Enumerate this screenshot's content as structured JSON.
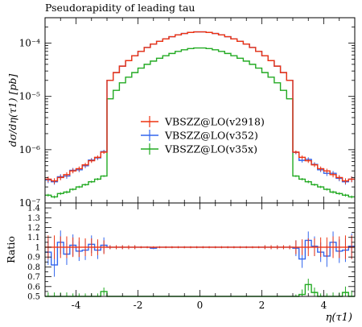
{
  "chart_data": {
    "type": "line",
    "title": "Pseudorapidity of leading tau",
    "ylabel": "dσ/dη(τ1) [pb]",
    "ratio_ylabel": "Ratio",
    "xlabel": "η(τ1)",
    "xlim": [
      -5,
      5
    ],
    "ylim_log": [
      1e-07,
      0.0003
    ],
    "ratio_ylim": [
      0.5,
      1.45
    ],
    "x_ticks": [
      -4,
      -2,
      0,
      2,
      4
    ],
    "x_tick_labels": [
      "-4",
      "-2",
      "0",
      "2",
      "4"
    ],
    "y_ticks": [
      1e-07,
      1e-06,
      1e-05,
      0.0001
    ],
    "y_tick_labels": [
      "10⁻⁷",
      "10⁻⁶",
      "10⁻⁵",
      "10⁻⁴"
    ],
    "ratio_ticks": [
      0.5,
      0.6,
      0.7,
      0.8,
      0.9,
      1.0,
      1.1,
      1.2,
      1.3,
      1.4
    ],
    "ratio_tick_labels": [
      "0.5",
      "0.6",
      "0.7",
      "0.8",
      "0.9",
      "1",
      "1.1",
      "1.2",
      "1.3",
      "1.4"
    ],
    "legend_position": "center",
    "bin_edges": [
      -5.0,
      -4.8,
      -4.6,
      -4.4,
      -4.2,
      -4.0,
      -3.8,
      -3.6,
      -3.4,
      -3.2,
      -3.0,
      -2.8,
      -2.6,
      -2.4,
      -2.2,
      -2.0,
      -1.8,
      -1.6,
      -1.4,
      -1.2,
      -1.0,
      -0.8,
      -0.6,
      -0.4,
      -0.2,
      0.0,
      0.2,
      0.4,
      0.6,
      0.8,
      1.0,
      1.2,
      1.4,
      1.6,
      1.8,
      2.0,
      2.2,
      2.4,
      2.6,
      2.8,
      3.0,
      3.2,
      3.4,
      3.6,
      3.8,
      4.0,
      4.2,
      4.4,
      4.6,
      4.8,
      5.0
    ],
    "series": [
      {
        "name": "VBSZZ@LO(v2918)",
        "color": "#ee3311",
        "values": [
          2.8e-07,
          2.6e-07,
          3e-07,
          3.4e-07,
          4e-07,
          4.4e-07,
          5.2e-07,
          6.2e-07,
          7.2e-07,
          9e-07,
          2e-05,
          2.8e-05,
          3.7e-05,
          4.7e-05,
          5.8e-05,
          7e-05,
          8.3e-05,
          9.6e-05,
          0.000108,
          0.00012,
          0.000132,
          0.000143,
          0.000152,
          0.000159,
          0.000163,
          0.000163,
          0.000159,
          0.000152,
          0.000143,
          0.000132,
          0.00012,
          0.000108,
          9.6e-05,
          8.3e-05,
          7e-05,
          5.8e-05,
          4.7e-05,
          3.7e-05,
          2.8e-05,
          2e-05,
          9e-07,
          7.2e-07,
          6.2e-07,
          5.2e-07,
          4.4e-07,
          4e-07,
          3.4e-07,
          3e-07,
          2.6e-07,
          2.8e-07
        ],
        "ratio": [
          1.0,
          1.0,
          1.0,
          1.0,
          1.0,
          1.0,
          1.0,
          1.0,
          1.0,
          1.0,
          1.0,
          1.0,
          1.0,
          1.0,
          1.0,
          1.0,
          1.0,
          1.0,
          1.0,
          1.0,
          1.0,
          1.0,
          1.0,
          1.0,
          1.0,
          1.0,
          1.0,
          1.0,
          1.0,
          1.0,
          1.0,
          1.0,
          1.0,
          1.0,
          1.0,
          1.0,
          1.0,
          1.0,
          1.0,
          1.0,
          1.0,
          1.0,
          1.0,
          1.0,
          1.0,
          1.0,
          1.0,
          1.0,
          1.0,
          1.0
        ],
        "ratio_err": [
          0.12,
          0.12,
          0.11,
          0.11,
          0.1,
          0.1,
          0.09,
          0.09,
          0.08,
          0.07,
          0.02,
          0.02,
          0.02,
          0.02,
          0.02,
          0.01,
          0.01,
          0.01,
          0.01,
          0.01,
          0.01,
          0.01,
          0.01,
          0.01,
          0.01,
          0.01,
          0.01,
          0.01,
          0.01,
          0.01,
          0.01,
          0.01,
          0.01,
          0.01,
          0.01,
          0.02,
          0.02,
          0.02,
          0.02,
          0.02,
          0.07,
          0.08,
          0.09,
          0.09,
          0.1,
          0.1,
          0.11,
          0.11,
          0.12,
          0.12
        ]
      },
      {
        "name": "VBSZZ@LO(v352)",
        "color": "#3366ee",
        "values": [
          2.7e-07,
          2.5e-07,
          3.1e-07,
          3.2e-07,
          4.1e-07,
          4.2e-07,
          5e-07,
          6.4e-07,
          7e-07,
          9.2e-07,
          2e-05,
          2.8e-05,
          3.7e-05,
          4.7e-05,
          5.8e-05,
          7e-05,
          8.3e-05,
          9.6e-05,
          0.000108,
          0.00012,
          0.000132,
          0.000143,
          0.000152,
          0.000159,
          0.000163,
          0.000163,
          0.000159,
          0.000152,
          0.000143,
          0.000132,
          0.00012,
          0.000108,
          9.6e-05,
          8.3e-05,
          7e-05,
          5.8e-05,
          4.7e-05,
          3.7e-05,
          2.8e-05,
          2e-05,
          8.9e-07,
          6.3e-07,
          6.6e-07,
          5.3e-07,
          4.2e-07,
          3.6e-07,
          3.6e-07,
          2.9e-07,
          2.5e-07,
          2.8e-07
        ],
        "ratio": [
          0.95,
          0.82,
          1.05,
          0.93,
          1.02,
          0.96,
          0.97,
          1.03,
          0.97,
          1.02,
          1.0,
          1.0,
          1.0,
          1.0,
          1.0,
          1.0,
          1.0,
          0.99,
          1.0,
          1.0,
          1.0,
          1.0,
          1.0,
          1.0,
          1.0,
          1.0,
          1.0,
          1.0,
          1.0,
          1.0,
          1.0,
          1.0,
          1.0,
          1.0,
          1.0,
          1.0,
          1.0,
          1.0,
          1.0,
          1.0,
          0.99,
          0.88,
          1.07,
          1.01,
          0.95,
          0.91,
          1.05,
          0.96,
          0.97,
          1.01
        ],
        "ratio_err": [
          0.13,
          0.12,
          0.12,
          0.11,
          0.11,
          0.1,
          0.1,
          0.09,
          0.09,
          0.08,
          0.02,
          0.02,
          0.02,
          0.02,
          0.02,
          0.01,
          0.01,
          0.01,
          0.01,
          0.01,
          0.01,
          0.01,
          0.01,
          0.01,
          0.01,
          0.01,
          0.01,
          0.01,
          0.01,
          0.01,
          0.01,
          0.01,
          0.01,
          0.01,
          0.01,
          0.02,
          0.02,
          0.02,
          0.02,
          0.02,
          0.08,
          0.09,
          0.09,
          0.1,
          0.1,
          0.11,
          0.11,
          0.12,
          0.12,
          0.13
        ]
      },
      {
        "name": "VBSZZ@LO(v35x)",
        "color": "#22aa22",
        "values": [
          1.4e-07,
          1.3e-07,
          1.5e-07,
          1.6e-07,
          1.8e-07,
          2e-07,
          2.2e-07,
          2.5e-07,
          2.8e-07,
          3.2e-07,
          9e-06,
          1.3e-05,
          1.8e-05,
          2.3e-05,
          2.8e-05,
          3.4e-05,
          4e-05,
          4.6e-05,
          5.2e-05,
          5.8e-05,
          6.4e-05,
          7e-05,
          7.5e-05,
          7.9e-05,
          8.1e-05,
          8.1e-05,
          7.9e-05,
          7.5e-05,
          7e-05,
          6.4e-05,
          5.8e-05,
          5.2e-05,
          4.6e-05,
          4e-05,
          3.4e-05,
          2.8e-05,
          2.3e-05,
          1.8e-05,
          1.3e-05,
          9e-06,
          3.2e-07,
          2.8e-07,
          2.5e-07,
          2.2e-07,
          2e-07,
          1.8e-07,
          1.6e-07,
          1.5e-07,
          1.4e-07,
          1.3e-07
        ],
        "ratio": [
          0.48,
          0.48,
          0.48,
          0.48,
          0.48,
          0.48,
          0.48,
          0.48,
          0.48,
          0.55,
          0.48,
          0.48,
          0.48,
          0.48,
          0.48,
          0.48,
          0.48,
          0.48,
          0.48,
          0.48,
          0.48,
          0.48,
          0.48,
          0.48,
          0.48,
          0.48,
          0.48,
          0.48,
          0.48,
          0.48,
          0.48,
          0.48,
          0.48,
          0.48,
          0.48,
          0.48,
          0.48,
          0.48,
          0.48,
          0.48,
          0.48,
          0.52,
          0.62,
          0.54,
          0.48,
          0.48,
          0.48,
          0.48,
          0.54,
          0.5
        ],
        "ratio_err": [
          0.06,
          0.06,
          0.06,
          0.06,
          0.05,
          0.05,
          0.05,
          0.05,
          0.05,
          0.04,
          0.01,
          0.01,
          0.01,
          0.01,
          0.01,
          0.01,
          0.01,
          0.01,
          0.01,
          0.01,
          0.01,
          0.01,
          0.01,
          0.01,
          0.01,
          0.01,
          0.01,
          0.01,
          0.01,
          0.01,
          0.01,
          0.01,
          0.01,
          0.01,
          0.01,
          0.01,
          0.01,
          0.01,
          0.01,
          0.01,
          0.04,
          0.05,
          0.06,
          0.05,
          0.05,
          0.05,
          0.06,
          0.06,
          0.06,
          0.06
        ]
      }
    ]
  }
}
